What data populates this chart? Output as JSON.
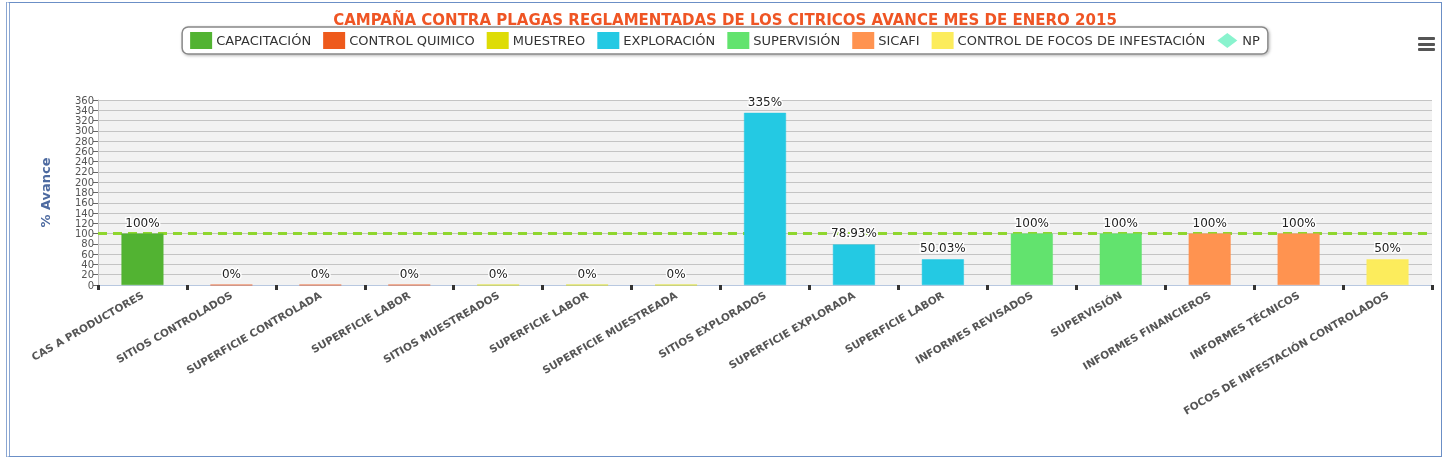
{
  "chart_data": {
    "type": "bar",
    "title": "CAMPAÑA CONTRA PLAGAS REGLAMENTADAS DE LOS CITRICOS AVANCE MES DE ENERO 2015",
    "ylabel": "% Avance",
    "categories": [
      "CAS A PRODUCTORES",
      "SITIOS CONTROLADOS",
      "SUPERFICIE CONTROLADA",
      "SUPERFICIE LABOR",
      "SITIOS MUESTREADOS",
      "SUPERFICIE LABOR",
      "SUPERFICIE MUESTREADA",
      "SITIOS EXPLORADOS",
      "SUPERFICIE EXPLORADA",
      "SUPERFICIE LABOR",
      "INFORMES REVISADOS",
      "SUPERVISIÓN",
      "INFORMES FINANCIEROS",
      "INFORMES TÉCNICOS",
      "FOCOS DE INFESTACIÓN CONTROLADOS"
    ],
    "stacked": true,
    "series": [
      {
        "name": "CAPACITACIÓN",
        "color": "#52b332",
        "values": [
          100,
          null,
          null,
          null,
          null,
          null,
          null,
          null,
          null,
          null,
          null,
          null,
          null,
          null,
          null
        ],
        "value_labels": [
          "100%",
          null,
          null,
          null,
          null,
          null,
          null,
          null,
          null,
          null,
          null,
          null,
          null,
          null,
          null
        ]
      },
      {
        "name": "CONTROL QUIMICO",
        "color": "#ee5a1c",
        "values": [
          null,
          0,
          0,
          0,
          null,
          null,
          null,
          null,
          null,
          null,
          null,
          null,
          null,
          null,
          null
        ],
        "value_labels": [
          null,
          "0%",
          "0%",
          "0%",
          null,
          null,
          null,
          null,
          null,
          null,
          null,
          null,
          null,
          null,
          null
        ]
      },
      {
        "name": "MUESTREO",
        "color": "#dedc06",
        "values": [
          null,
          null,
          null,
          null,
          0,
          0,
          0,
          null,
          null,
          null,
          null,
          null,
          null,
          null,
          null
        ],
        "value_labels": [
          null,
          null,
          null,
          null,
          "0%",
          "0%",
          "0%",
          null,
          null,
          null,
          null,
          null,
          null,
          null,
          null
        ]
      },
      {
        "name": "EXPLORACIÓN",
        "color": "#24c9e3",
        "values": [
          null,
          null,
          null,
          null,
          null,
          null,
          null,
          335,
          78.93,
          50.03,
          null,
          null,
          null,
          null,
          null
        ],
        "value_labels": [
          null,
          null,
          null,
          null,
          null,
          null,
          null,
          "335%",
          "78.93%",
          "50.03%",
          null,
          null,
          null,
          null,
          null
        ]
      },
      {
        "name": "SUPERVISIÓN",
        "color": "#62e36e",
        "values": [
          null,
          null,
          null,
          null,
          null,
          null,
          null,
          null,
          null,
          null,
          100,
          100,
          null,
          null,
          null
        ],
        "value_labels": [
          null,
          null,
          null,
          null,
          null,
          null,
          null,
          null,
          null,
          null,
          "100%",
          "100%",
          null,
          null,
          null
        ]
      },
      {
        "name": "SICAFI",
        "color": "#ff9350",
        "values": [
          null,
          null,
          null,
          null,
          null,
          null,
          null,
          null,
          null,
          null,
          null,
          null,
          100,
          100,
          null
        ],
        "value_labels": [
          null,
          null,
          null,
          null,
          null,
          null,
          null,
          null,
          null,
          null,
          null,
          null,
          "100%",
          "100%",
          null
        ]
      },
      {
        "name": "CONTROL DE FOCOS DE INFESTACIÓN",
        "color": "#fcec5c",
        "values": [
          null,
          null,
          null,
          null,
          null,
          null,
          null,
          null,
          null,
          null,
          null,
          null,
          null,
          null,
          50
        ],
        "value_labels": [
          null,
          null,
          null,
          null,
          null,
          null,
          null,
          null,
          null,
          null,
          null,
          null,
          null,
          null,
          "50%"
        ]
      },
      {
        "name": "NP",
        "type": "scatter",
        "color": "#6cf0c2",
        "marker": "diamond",
        "values": [
          null,
          null,
          null,
          null,
          null,
          null,
          null,
          null,
          null,
          null,
          null,
          null,
          null,
          null,
          null
        ]
      }
    ],
    "ylim": [
      0,
      360
    ],
    "yticks": [
      0,
      20,
      40,
      60,
      80,
      100,
      120,
      140,
      160,
      180,
      200,
      220,
      240,
      260,
      280,
      300,
      320,
      340,
      360
    ],
    "ref_lines": [
      {
        "axis": "y",
        "value": 100,
        "color": "#8fd62e",
        "line_style": "dashed"
      }
    ],
    "grid": "y",
    "legend": "top"
  }
}
